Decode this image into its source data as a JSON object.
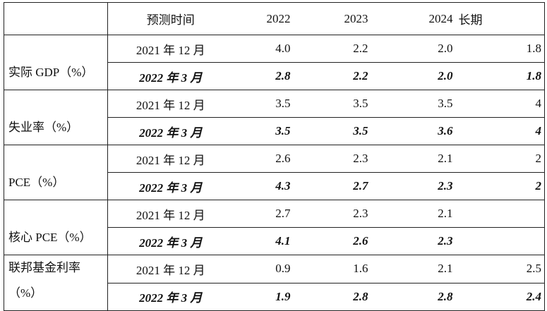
{
  "table": {
    "header": [
      "预测时间",
      "2022",
      "2023",
      "2024",
      "长期"
    ],
    "groups": [
      {
        "label": "实际 GDP（%）",
        "rows": [
          [
            "2021 年 12 月",
            "4.0",
            "2.2",
            "2.0",
            "1.8"
          ],
          [
            "2022 年 3 月",
            "2.8",
            "2.2",
            "2.0",
            "1.8"
          ]
        ]
      },
      {
        "label": "失业率（%）",
        "rows": [
          [
            "2021 年 12 月",
            "3.5",
            "3.5",
            "3.5",
            "4"
          ],
          [
            "2022 年 3 月",
            "3.5",
            "3.5",
            "3.6",
            "4"
          ]
        ]
      },
      {
        "label": "PCE（%）",
        "rows": [
          [
            "2021 年 12 月",
            "2.6",
            "2.3",
            "2.1",
            "2"
          ],
          [
            "2022 年 3 月",
            "4.3",
            "2.7",
            "2.3",
            "2"
          ]
        ]
      },
      {
        "label": "核心 PCE（%）",
        "rows": [
          [
            "2021 年 12 月",
            "2.7",
            "2.3",
            "2.1",
            null
          ],
          [
            "2022 年 3 月",
            "4.1",
            "2.6",
            "2.3",
            null
          ]
        ]
      },
      {
        "label": "联邦基金利率（%）",
        "rows": [
          [
            "2021 年 12 月",
            "0.9",
            "1.6",
            "2.1",
            "2.5"
          ],
          [
            "2022 年 3 月",
            "1.9",
            "2.8",
            "2.8",
            "2.4"
          ]
        ]
      }
    ]
  }
}
